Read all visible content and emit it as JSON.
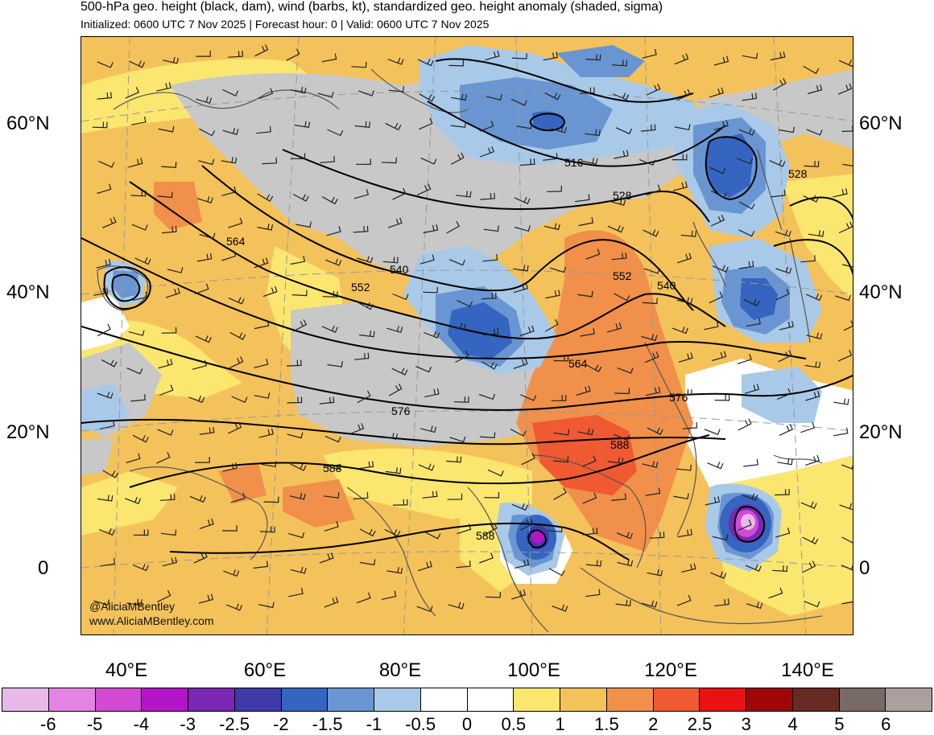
{
  "header": {
    "title": "500-hPa geo. height (black, dam), wind (barbs, kt), standardized geo. height anomaly (shaded, sigma)",
    "subtitle": "Initialized: 0600 UTC 7 Nov 2025 | Forecast hour: 0 | Valid: 0600 UTC 7 Nov 2025"
  },
  "map": {
    "lat_labels_left": [
      "60°N",
      "40°N",
      "20°N",
      "0"
    ],
    "lat_labels_right": [
      "60°N",
      "40°N",
      "20°N",
      "0"
    ],
    "lon_labels": [
      "40°E",
      "60°E",
      "80°E",
      "100°E",
      "120°E",
      "140°E"
    ],
    "contour_labels": [
      "516",
      "528",
      "540",
      "552",
      "564",
      "576",
      "588",
      "528",
      "540",
      "552",
      "564",
      "576",
      "588",
      "588"
    ],
    "credit_handle": "@AliciaMBentley",
    "credit_url": "www.AliciaMBentley.com"
  },
  "colorbar": {
    "labels": [
      "-6",
      "-5",
      "-4",
      "-3",
      "-2.5",
      "-2",
      "-1.5",
      "-1",
      "-0.5",
      "0",
      "0.5",
      "1",
      "1.5",
      "2",
      "2.5",
      "3",
      "4",
      "5",
      "6"
    ],
    "colors": [
      "#e8b8e8",
      "#e383e3",
      "#d24ad2",
      "#b216c8",
      "#7a28b4",
      "#3e3aa8",
      "#3565c0",
      "#6996d2",
      "#a9c9e8",
      "#ffffff",
      "#ffffff",
      "#fbe670",
      "#f4c25a",
      "#f0904a",
      "#ef5a32",
      "#e81212",
      "#a00808",
      "#6a2a24",
      "#786a66",
      "#aca09e"
    ]
  },
  "palette": {
    "land_gray": "#c8c8c8",
    "coast": "#555555",
    "contour": "#000000"
  }
}
